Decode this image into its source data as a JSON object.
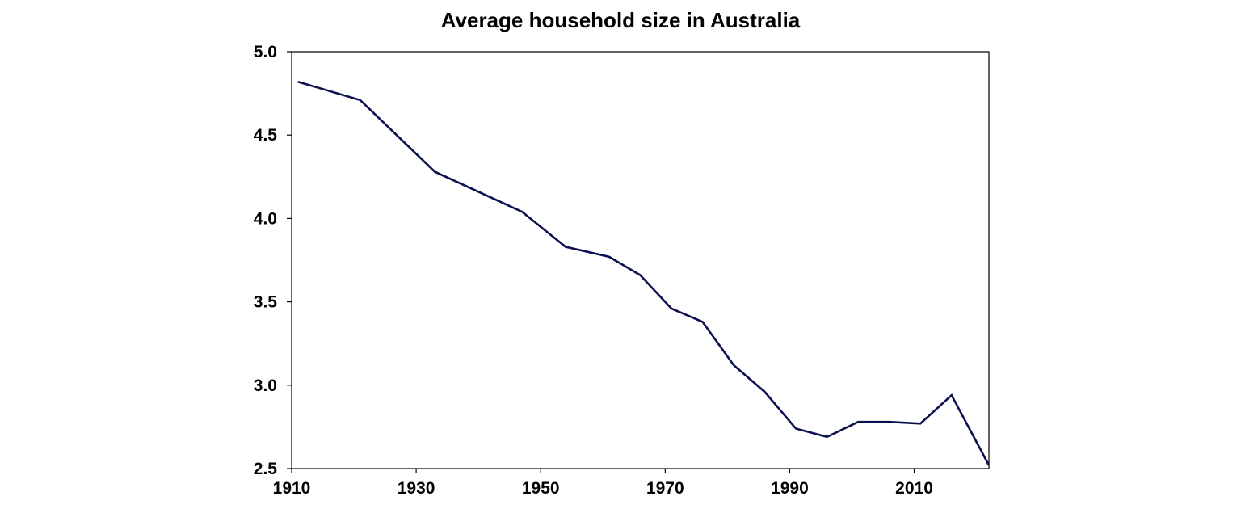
{
  "chart_data": {
    "type": "line",
    "title": "Average household size in Australia",
    "xlabel": "",
    "ylabel": "",
    "xlim": [
      1910,
      2022
    ],
    "ylim": [
      2.5,
      5.0
    ],
    "x_ticks": [
      1910,
      1930,
      1950,
      1970,
      1990,
      2010
    ],
    "x_tick_labels": [
      "1910",
      "1930",
      "1950",
      "1970",
      "1990",
      "2010"
    ],
    "y_ticks": [
      2.5,
      3.0,
      3.5,
      4.0,
      4.5,
      5.0
    ],
    "y_tick_labels": [
      "2.5",
      "3.0",
      "3.5",
      "4.0",
      "4.5",
      "5.0"
    ],
    "grid": false,
    "line_color": "#0b1150",
    "series": [
      {
        "x": [
          1911,
          1921,
          1933,
          1947,
          1954,
          1961,
          1966,
          1971,
          1976,
          1981,
          1986,
          1991,
          1996,
          2001,
          2006,
          2011,
          2016,
          2022
        ],
        "values": [
          4.82,
          4.71,
          4.28,
          4.04,
          3.83,
          3.77,
          3.66,
          3.46,
          3.38,
          3.12,
          2.96,
          2.74,
          2.69,
          2.78,
          2.78,
          2.77,
          2.94,
          2.52
        ]
      }
    ]
  }
}
